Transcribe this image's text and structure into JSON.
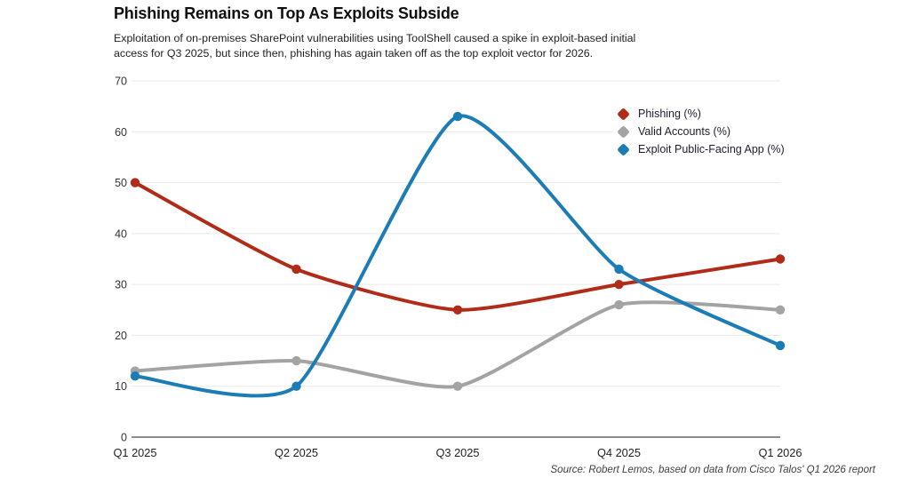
{
  "page": {
    "title": "Phishing Remains on Top As Exploits Subside",
    "subtitle": "Exploitation of on-premises SharePoint vulnerabilities using ToolShell caused a spike in exploit-based initial access for Q3 2025, but since then, phishing has again taken off as the top exploit vector for 2026.",
    "source": "Source: Robert Lemos, based on data from Cisco Talos' Q1 2026 report"
  },
  "chart_data": {
    "type": "line",
    "title": "Phishing Remains on Top As Exploits Subside",
    "categories": [
      "Q1 2025",
      "Q2 2025",
      "Q3 2025",
      "Q4 2025",
      "Q1 2026"
    ],
    "series": [
      {
        "name": "Phishing (%)",
        "color": "#b02c18",
        "values": [
          50,
          33,
          25,
          30,
          35
        ]
      },
      {
        "name": "Valid Accounts (%)",
        "color": "#a3a3a3",
        "values": [
          13,
          15,
          10,
          26,
          25
        ]
      },
      {
        "name": "Exploit Public-Facing App (%)",
        "color": "#1c7cb5",
        "values": [
          12,
          10,
          63,
          33,
          18
        ]
      }
    ],
    "ylim": [
      0,
      70
    ],
    "ytick_step": 10,
    "xlabel": "",
    "ylabel": "",
    "grid": true,
    "gridline_color": "#e9e9e9",
    "axis_line_color": "#8d8d8d",
    "tick_label_color": "#333333",
    "line_style": "smooth",
    "marker": "circle",
    "legend_position": "top-right"
  }
}
